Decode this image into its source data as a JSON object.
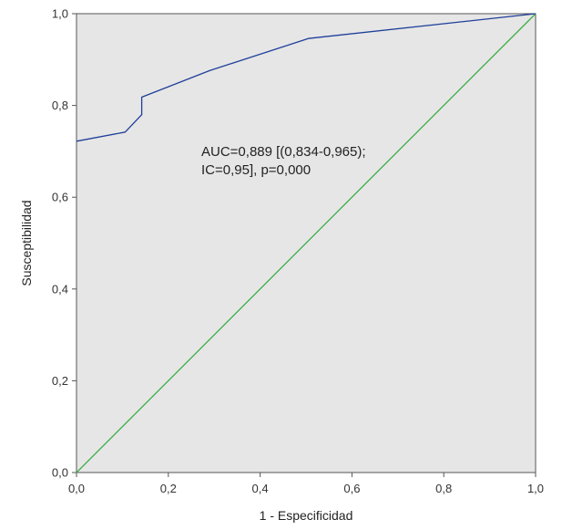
{
  "chart_data": {
    "type": "line",
    "xlabel": "1 - Especificidad",
    "ylabel": "Susceptibilidad",
    "xlim": [
      0,
      1
    ],
    "ylim": [
      0,
      1
    ],
    "grid": false,
    "x_ticks": [
      "0,0",
      "0,2",
      "0,4",
      "0,6",
      "0,8",
      "1,0"
    ],
    "y_ticks": [
      "0,0",
      "0,2",
      "0,4",
      "0,6",
      "0,8",
      "1,0"
    ],
    "annotation": [
      "AUC=0,889 [(0,834-0,965);",
      "IC=0,95], p=0,000"
    ],
    "background_color": "#e6e6e6",
    "series": [
      {
        "color": "#1f3f9a",
        "x": [
          0.0,
          0.106,
          0.142,
          0.142,
          0.29,
          0.505,
          1.0
        ],
        "y": [
          0.722,
          0.742,
          0.78,
          0.818,
          0.876,
          0.946,
          1.0
        ]
      },
      {
        "color": "#3fae49",
        "x": [
          0.0,
          1.0
        ],
        "y": [
          0.0,
          1.0
        ]
      }
    ]
  }
}
